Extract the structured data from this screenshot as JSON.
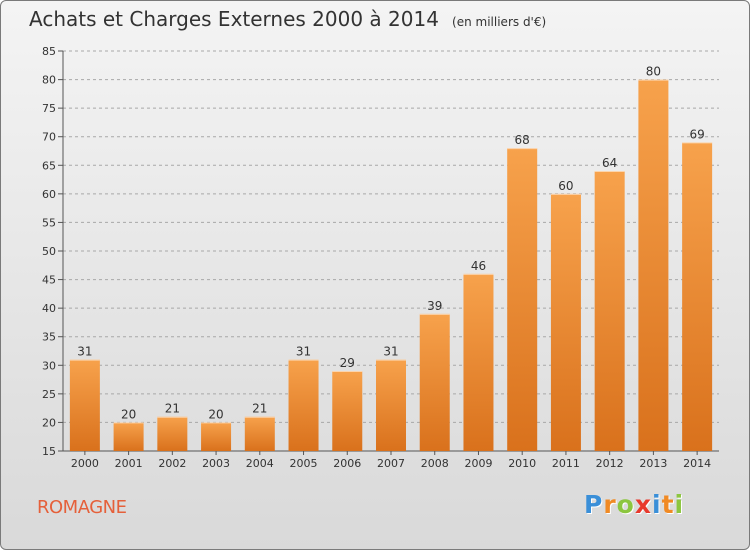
{
  "chart_data": {
    "type": "bar",
    "title": "Achats et Charges Externes 2000 à 2014",
    "subtitle": "(en milliers d'€)",
    "categories": [
      "2000",
      "2001",
      "2002",
      "2003",
      "2004",
      "2005",
      "2006",
      "2007",
      "2008",
      "2009",
      "2010",
      "2011",
      "2012",
      "2013",
      "2014"
    ],
    "values": [
      31,
      20,
      21,
      20,
      21,
      31,
      29,
      31,
      39,
      46,
      68,
      60,
      64,
      80,
      69
    ],
    "ylim": [
      15,
      85
    ],
    "yticks": [
      15,
      20,
      25,
      30,
      35,
      40,
      45,
      50,
      55,
      60,
      65,
      70,
      75,
      80,
      85
    ],
    "grid": true,
    "bar_color_top": "#f7a24c",
    "bar_color_bottom": "#d9711c"
  },
  "commune": "ROMAGNE",
  "logo": {
    "letters": [
      "P",
      "r",
      "o",
      "x",
      "i",
      "t",
      "i"
    ],
    "colors": [
      "#3a8fd8",
      "#f08a24",
      "#8cc63f",
      "#e8392c",
      "#3a8fd8",
      "#f08a24",
      "#8cc63f"
    ]
  }
}
